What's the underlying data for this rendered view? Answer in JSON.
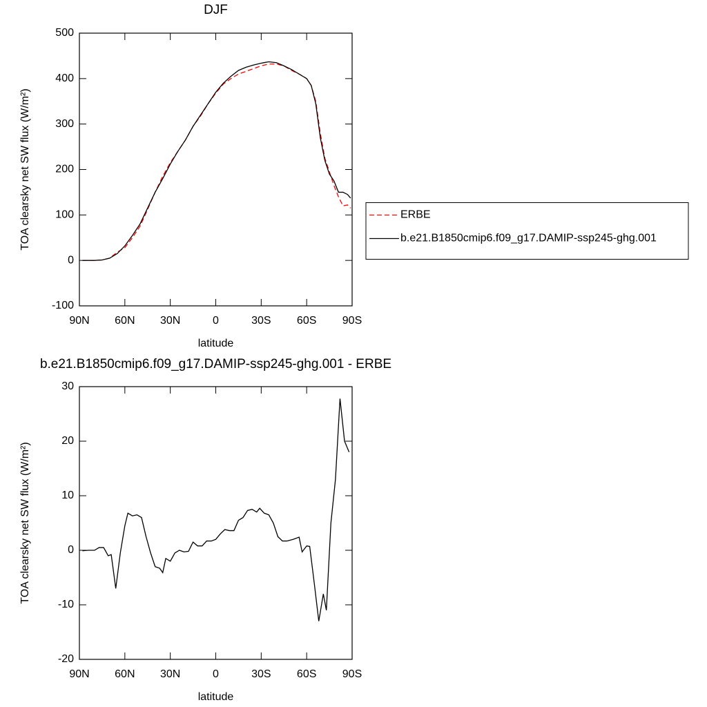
{
  "chart_data": [
    {
      "type": "line",
      "title": "DJF",
      "x_label": "latitude",
      "y_label": "TOA clearsky net SW flux (W/m²)",
      "x": [
        -88,
        -80,
        -75,
        -70,
        -65,
        -60,
        -55,
        -50,
        -45,
        -40,
        -35,
        -30,
        -25,
        -20,
        -15,
        -10,
        -5,
        0,
        5,
        10,
        15,
        20,
        25,
        30,
        35,
        40,
        45,
        50,
        55,
        60,
        63,
        66,
        69,
        72,
        75,
        78,
        81,
        84,
        87,
        89
      ],
      "series": [
        {
          "name": "ERBE",
          "color": "#ff0000",
          "dashed": true,
          "values": [
            0,
            0,
            1,
            5,
            18,
            28,
            50,
            75,
            112,
            150,
            185,
            215,
            240,
            265,
            295,
            318,
            345,
            368,
            388,
            400,
            410,
            416,
            422,
            428,
            432,
            432,
            428,
            418,
            410,
            400,
            385,
            350,
            280,
            225,
            195,
            165,
            140,
            120,
            122,
            115
          ]
        },
        {
          "name": "b.e21.B1850cmip6.f09_g17.DAMIP-ssp245-ghg.001",
          "color": "#000000",
          "dashed": false,
          "values": [
            0,
            0,
            1,
            5,
            15,
            32,
            55,
            80,
            115,
            150,
            180,
            212,
            240,
            265,
            295,
            320,
            345,
            370,
            390,
            405,
            418,
            425,
            430,
            434,
            437,
            435,
            428,
            420,
            410,
            400,
            385,
            345,
            270,
            220,
            190,
            175,
            150,
            150,
            145,
            137
          ]
        }
      ],
      "xlim": [
        -90,
        90
      ],
      "xticks": [
        {
          "value": -90,
          "label": "90N"
        },
        {
          "value": -60,
          "label": "60N"
        },
        {
          "value": -30,
          "label": "30N"
        },
        0,
        {
          "value": 30,
          "label": "30S"
        },
        {
          "value": 60,
          "label": "60S"
        },
        {
          "value": 90,
          "label": "90S"
        }
      ],
      "ylim": [
        -100,
        500
      ],
      "yticks": [
        -100,
        0,
        100,
        200,
        300,
        400,
        500
      ],
      "legend_position": "right"
    },
    {
      "type": "line",
      "title": "b.e21.B1850cmip6.f09_g17.DAMIP-ssp245-ghg.001 - ERBE",
      "x_label": "latitude",
      "y_label": "TOA clearsky net SW flux (W/m²)",
      "x": [
        -88,
        -84,
        -80,
        -77,
        -74,
        -71,
        -69,
        -66,
        -63,
        -60,
        -58,
        -55,
        -52,
        -49,
        -46,
        -43,
        -40,
        -37,
        -35,
        -33,
        -30,
        -27,
        -24,
        -21,
        -18,
        -15,
        -12,
        -9,
        -6,
        -3,
        0,
        3,
        6,
        9,
        12,
        15,
        18,
        21,
        24,
        27,
        29,
        32,
        35,
        38,
        41,
        44,
        47,
        51,
        55,
        57,
        60,
        62,
        65,
        68,
        71,
        73,
        76,
        79,
        82,
        85,
        88
      ],
      "series": [
        {
          "color": "#000000",
          "dashed": false,
          "values": [
            -0.1,
            0,
            0,
            0.5,
            0.5,
            -1,
            -0.8,
            -7,
            -0.5,
            4.5,
            6.8,
            6.3,
            6.5,
            6,
            2.5,
            -0.5,
            -3,
            -3.3,
            -4.1,
            -1.5,
            -2,
            -0.5,
            0,
            -0.3,
            -0.2,
            1.5,
            0.8,
            0.8,
            1.7,
            1.7,
            2,
            3,
            3.8,
            3.6,
            3.6,
            5.5,
            6,
            7.3,
            7.5,
            7,
            7.7,
            6.8,
            6.5,
            5,
            2.5,
            1.7,
            1.7,
            2,
            2.4,
            -0.3,
            0.8,
            0.7,
            -6,
            -13,
            -8,
            -11,
            5,
            13,
            27.8,
            20,
            18
          ]
        }
      ],
      "xlim": [
        -90,
        90
      ],
      "xticks": [
        {
          "value": -90,
          "label": "90N"
        },
        {
          "value": -60,
          "label": "60N"
        },
        {
          "value": -30,
          "label": "30N"
        },
        0,
        {
          "value": 30,
          "label": "30S"
        },
        {
          "value": 60,
          "label": "60S"
        },
        {
          "value": 90,
          "label": "90S"
        }
      ],
      "ylim": [
        -20,
        30
      ],
      "yticks": [
        -20,
        -10,
        0,
        10,
        20,
        30
      ]
    }
  ]
}
